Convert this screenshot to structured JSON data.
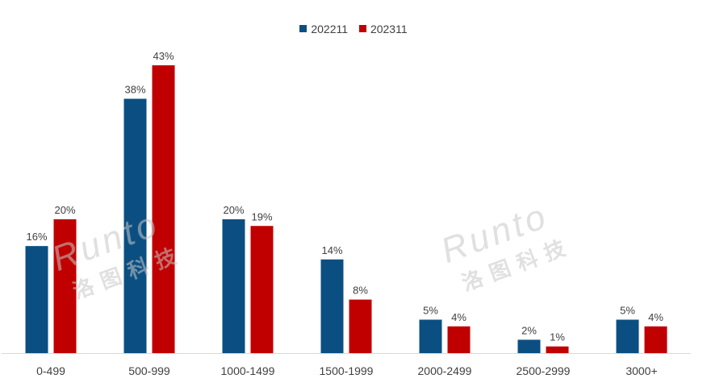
{
  "chart_data": {
    "type": "bar",
    "categories": [
      "0-499",
      "500-999",
      "1000-1499",
      "1500-1999",
      "2000-2499",
      "2500-2999",
      "3000+"
    ],
    "series": [
      {
        "name": "202211",
        "color": "#0b4f82",
        "values": [
          16,
          38,
          20,
          14,
          5,
          2,
          5
        ],
        "labels": [
          "16%",
          "38%",
          "20%",
          "14%",
          "5%",
          "2%",
          "5%"
        ]
      },
      {
        "name": "202311",
        "color": "#c00000",
        "values": [
          20,
          43,
          19,
          8,
          4,
          1,
          4
        ],
        "labels": [
          "20%",
          "43%",
          "19%",
          "8%",
          "4%",
          "1%",
          "4%"
        ]
      }
    ],
    "ylim": [
      0,
      43
    ],
    "grid": false,
    "legend_position": "top-center",
    "axis_color": "#d9d9d9",
    "label_color": "#404040"
  },
  "watermark": {
    "latin": "Runto",
    "cjk": "洛图科技",
    "color": "#c8c8c8"
  }
}
